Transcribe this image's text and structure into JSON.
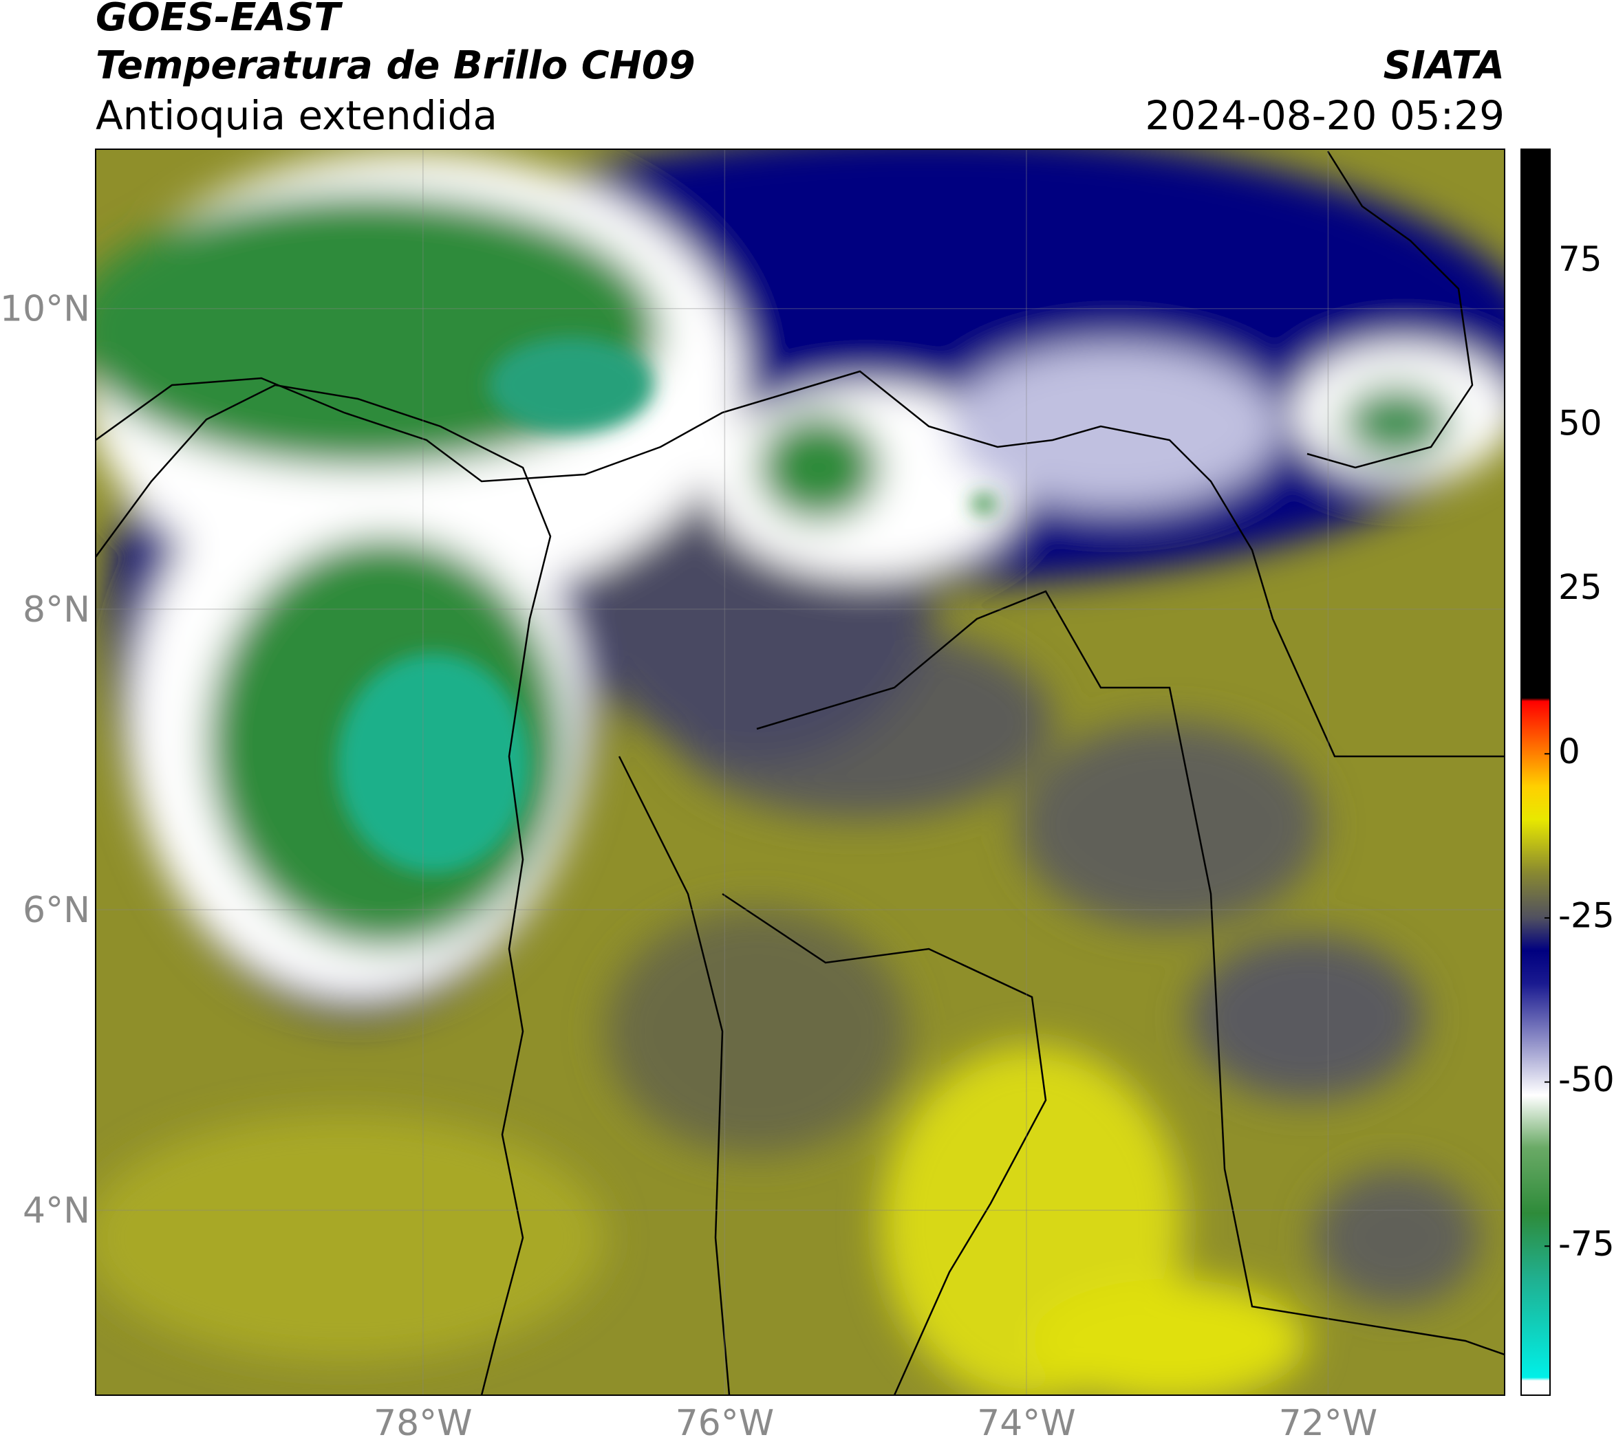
{
  "header": {
    "title": "GOES-EAST",
    "subtitle": "Temperatura de Brillo CH09",
    "region": "Antioquia extendida",
    "source": "SIATA",
    "timestamp": "2024-08-20 05:29"
  },
  "chart_data": {
    "type": "map",
    "xlim": [
      -80.17,
      -70.83
    ],
    "ylim": [
      2.77,
      11.06
    ],
    "xticks": [
      {
        "value": -78,
        "label": "78°W"
      },
      {
        "value": -76,
        "label": "76°W"
      },
      {
        "value": -74,
        "label": "74°W"
      },
      {
        "value": -72,
        "label": "72°W"
      }
    ],
    "yticks": [
      {
        "value": 4,
        "label": "4°N"
      },
      {
        "value": 6,
        "label": "6°N"
      },
      {
        "value": 8,
        "label": "8°N"
      },
      {
        "value": 10,
        "label": "10°N"
      }
    ],
    "grid": true,
    "colorbar": {
      "lim": [
        -97.7,
        92.1
      ],
      "ticks": [
        -75,
        -50,
        -25,
        0,
        25,
        50,
        75
      ],
      "stops": [
        {
          "value": -97.7,
          "color": "#ffffff"
        },
        {
          "value": -95.5,
          "color": "#ffffff"
        },
        {
          "value": -95,
          "color": "#00f0e8"
        },
        {
          "value": -80,
          "color": "#20b090"
        },
        {
          "value": -70,
          "color": "#2e8b3a"
        },
        {
          "value": -60,
          "color": "#6aaa66"
        },
        {
          "value": -52,
          "color": "#ffffff"
        },
        {
          "value": -45,
          "color": "#a0a0d0"
        },
        {
          "value": -35,
          "color": "#1a1a90"
        },
        {
          "value": -30,
          "color": "#000080"
        },
        {
          "value": -25,
          "color": "#505060"
        },
        {
          "value": -18,
          "color": "#8a8a30"
        },
        {
          "value": -10,
          "color": "#e8e800"
        },
        {
          "value": -5,
          "color": "#ffd000"
        },
        {
          "value": 0,
          "color": "#ff8000"
        },
        {
          "value": 8,
          "color": "#ff0000"
        },
        {
          "value": 8.5,
          "color": "#000000"
        },
        {
          "value": 92.1,
          "color": "#000000"
        }
      ]
    }
  }
}
